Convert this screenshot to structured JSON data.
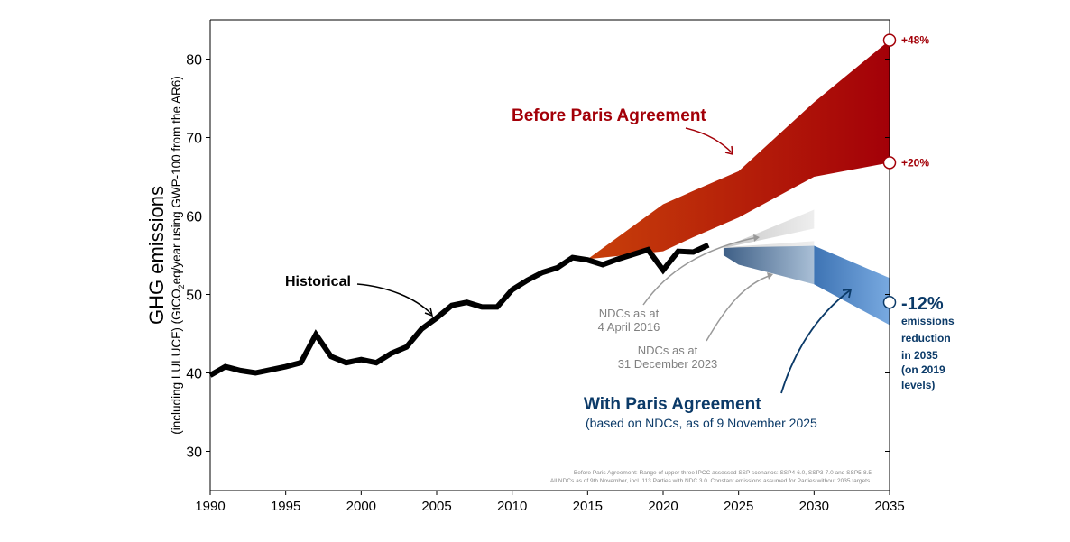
{
  "chart_data": {
    "type": "area",
    "xlabel": "",
    "ylabel": "GHG emissions",
    "ylabel_sub_parts": [
      "(including LULUCF) (GtCO",
      "2",
      "eq/year using GWP-100 from the AR6)"
    ],
    "xlim": [
      1990,
      2035
    ],
    "ylim": [
      25,
      85
    ],
    "xticks": [
      1990,
      1995,
      2000,
      2005,
      2010,
      2015,
      2020,
      2025,
      2030,
      2035
    ],
    "yticks": [
      30,
      40,
      50,
      60,
      70,
      80
    ],
    "grid": false,
    "series": [
      {
        "name": "Historical",
        "kind": "line",
        "color": "#000000",
        "x": [
          1990,
          1991,
          1992,
          1993,
          1994,
          1995,
          1996,
          1997,
          1998,
          1999,
          2000,
          2001,
          2002,
          2003,
          2004,
          2005,
          2006,
          2007,
          2008,
          2009,
          2010,
          2011,
          2012,
          2013,
          2014,
          2015,
          2016,
          2017,
          2018,
          2019,
          2020,
          2021,
          2022,
          2023
        ],
        "y": [
          39.7,
          40.8,
          40.3,
          40.0,
          40.4,
          40.8,
          41.3,
          44.9,
          42.1,
          41.3,
          41.7,
          41.3,
          42.5,
          43.3,
          45.6,
          47.0,
          48.6,
          49.0,
          48.4,
          48.4,
          50.6,
          51.8,
          52.8,
          53.4,
          54.7,
          54.4,
          53.8,
          54.5,
          55.1,
          55.7,
          53.1,
          55.5,
          55.4,
          56.3
        ]
      },
      {
        "name": "Before Paris Agreement",
        "kind": "band",
        "color_start": "#c8400a",
        "color_end": "#a30008",
        "x": [
          2015,
          2020,
          2022,
          2025,
          2030,
          2035
        ],
        "upper": [
          54.5,
          61.5,
          63.2,
          65.7,
          74.5,
          82.4
        ],
        "lower": [
          54.5,
          55.5,
          57.3,
          59.8,
          65.0,
          66.8
        ]
      },
      {
        "name": "NDCs as at 4 April 2016",
        "kind": "band",
        "color_start": "#c8c8c8",
        "color_end": "#eeeeee",
        "x": [
          2024,
          2030
        ],
        "upper": [
          56.0,
          60.8
        ],
        "lower": [
          55.9,
          58.4
        ]
      },
      {
        "name": "NDCs as at 31 December 2023",
        "kind": "band",
        "color_start": "#d8d8d8",
        "color_end": "#eeeeee",
        "x": [
          2024,
          2030
        ],
        "upper": [
          56.0,
          56.8
        ],
        "lower": [
          55.9,
          56.2
        ]
      },
      {
        "name": "With Paris Agreement (NDCs to 2030)",
        "kind": "band",
        "color_start": "#3e5f86",
        "color_end": "#a9bfd6",
        "x": [
          2024,
          2025,
          2030
        ],
        "upper": [
          55.9,
          56.0,
          56.2
        ],
        "lower": [
          55.0,
          53.8,
          51.3
        ]
      },
      {
        "name": "With Paris Agreement (2035)",
        "kind": "band",
        "color_start": "#3e74b4",
        "color_end": "#78a9e0",
        "x": [
          2030,
          2035
        ],
        "upper": [
          56.2,
          52.1
        ],
        "lower": [
          51.3,
          46.1
        ]
      }
    ],
    "markers_2035": [
      {
        "value": 82.4,
        "label": "+48%",
        "color": "#a30008"
      },
      {
        "value": 66.8,
        "label": "+20%",
        "color": "#a30008"
      },
      {
        "value": 49.0,
        "label": "-12%",
        "color": "#0b3a68"
      }
    ],
    "annotations": {
      "historical": "Historical",
      "before_paris": "Before Paris Agreement",
      "ndc_2016": [
        "NDCs as at",
        "4 April 2016"
      ],
      "ndc_2023": [
        "NDCs as at",
        "31 December 2023"
      ],
      "with_paris": "With Paris Agreement",
      "with_paris_sub": "(based on NDCs, as of 9 November 2025",
      "reduction_note": [
        "emissions",
        "reduction",
        "in 2035",
        "(on 2019",
        "levels)"
      ],
      "footnote": [
        "Before Paris Agreement: Range of upper three IPCC assessed SSP scenarios: SSP4-6.0, SSP3-7.0 and SSP5-8.5",
        "All NDCs as of 9th November, incl. 113 Parties with NDC 3.0. Constant emissions assumed for Parties without 2035 targets."
      ]
    },
    "colors": {
      "red_text": "#a30008",
      "blue_text": "#0b3a68",
      "gray_text": "#808080",
      "axis": "#000000"
    }
  }
}
